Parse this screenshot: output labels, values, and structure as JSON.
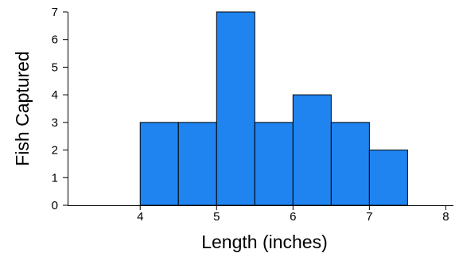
{
  "chart_data": {
    "type": "bar",
    "subtype": "histogram",
    "title": "",
    "xlabel": "Length (inches)",
    "ylabel": "Fish Captured",
    "xlim": [
      3.05,
      8.1
    ],
    "ylim": [
      0,
      7
    ],
    "xticks": [
      "4",
      "5",
      "6",
      "7",
      "8"
    ],
    "yticks": [
      "0",
      "1",
      "2",
      "3",
      "4",
      "5",
      "6",
      "7"
    ],
    "bins": [
      {
        "from": 4.0,
        "to": 4.5,
        "value": 3
      },
      {
        "from": 4.5,
        "to": 5.0,
        "value": 3
      },
      {
        "from": 5.0,
        "to": 5.5,
        "value": 7
      },
      {
        "from": 5.5,
        "to": 6.0,
        "value": 3
      },
      {
        "from": 6.0,
        "to": 6.5,
        "value": 4
      },
      {
        "from": 6.5,
        "to": 7.0,
        "value": 3
      },
      {
        "from": 7.0,
        "to": 7.5,
        "value": 2
      }
    ],
    "bar_color": "#1f84f0",
    "bar_edge_color": "#000000",
    "grid": false,
    "legend": "none"
  }
}
